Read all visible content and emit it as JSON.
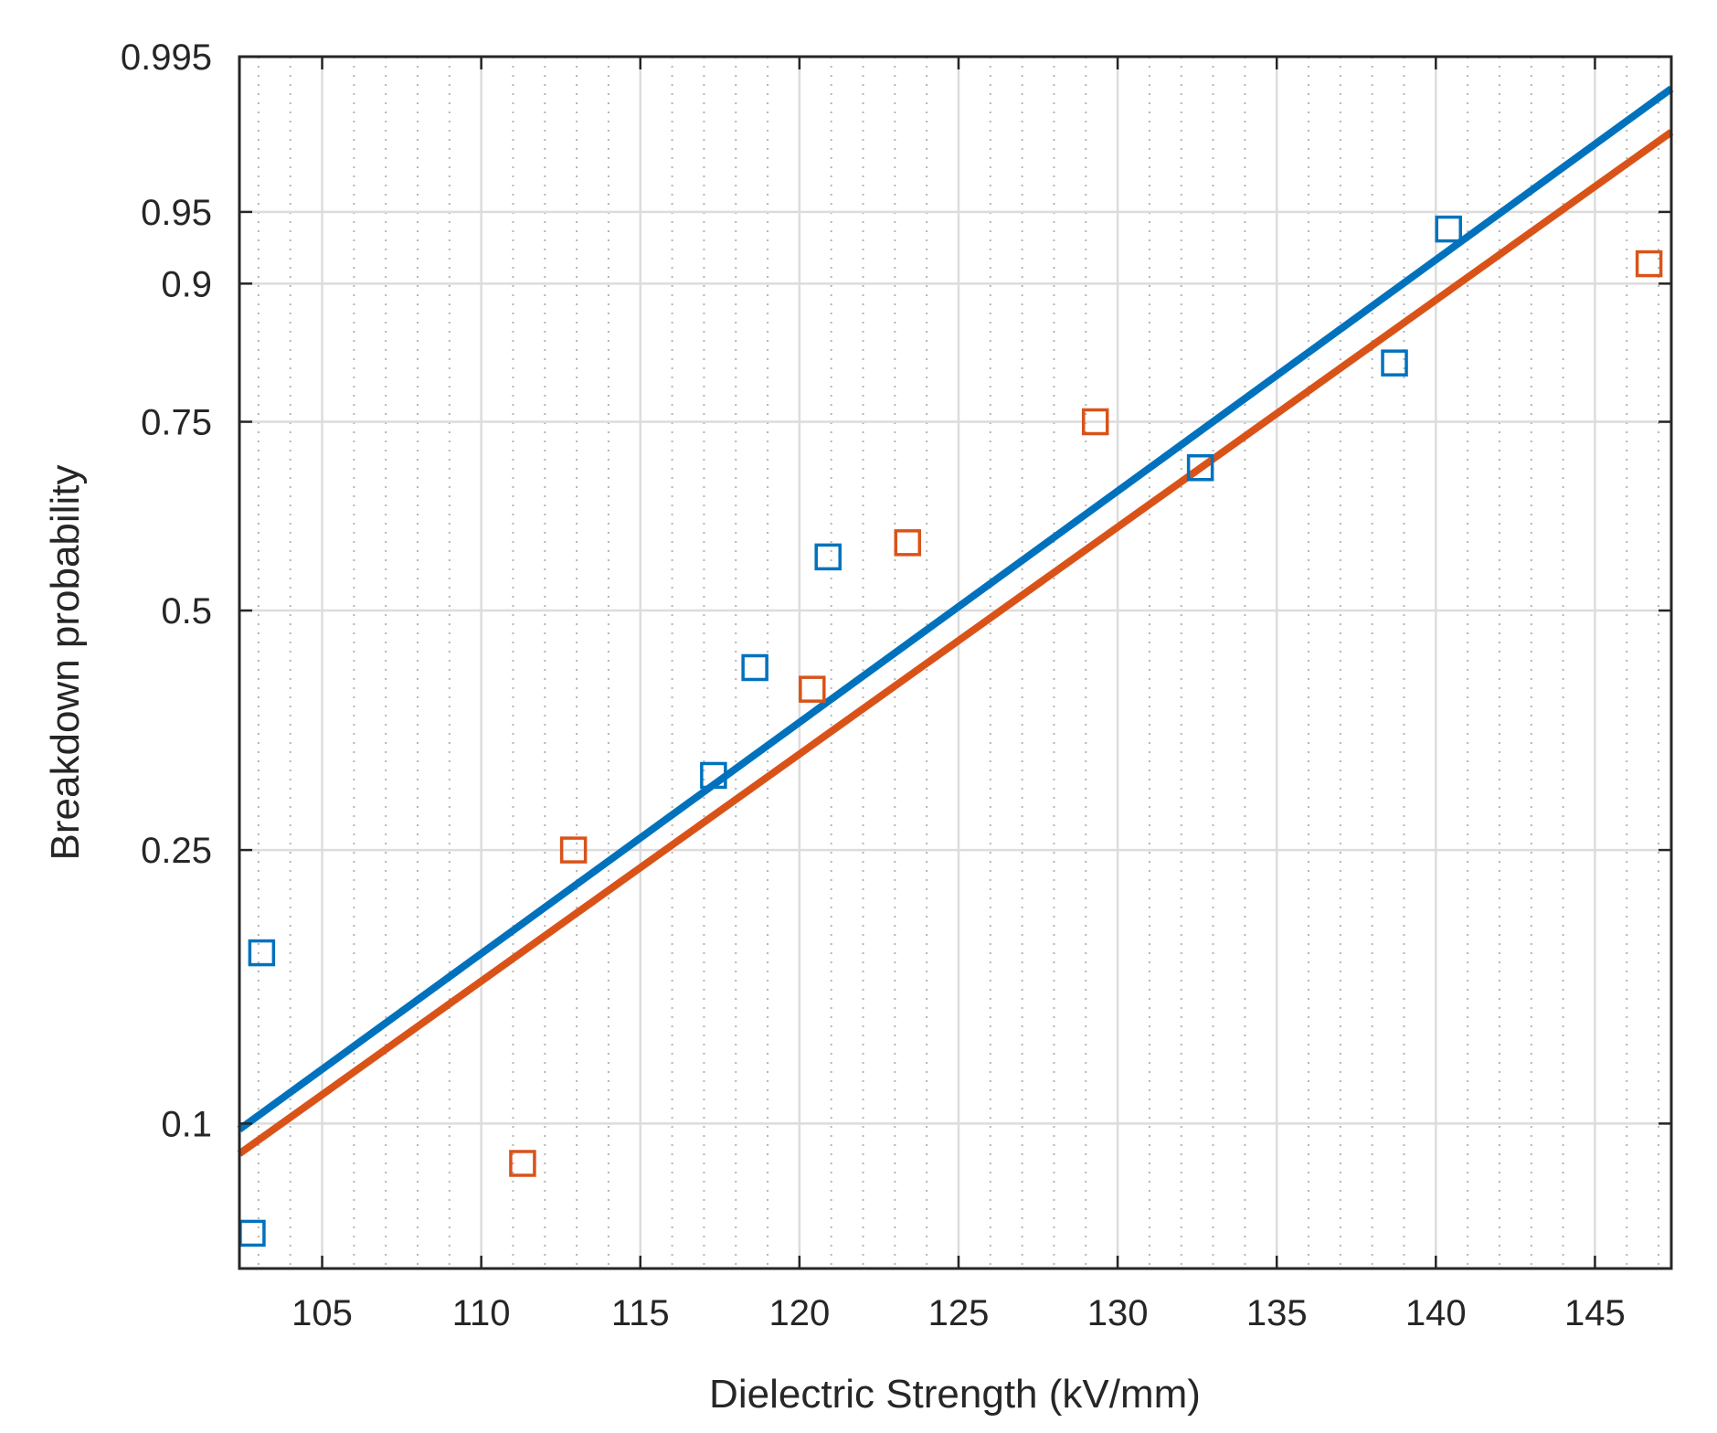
{
  "chart_data": {
    "type": "scatter",
    "title": "",
    "xlabel": "Dielectric Strength (kV/mm)",
    "ylabel": "Breakdown probability",
    "xlim": [
      102.4,
      147.4
    ],
    "ylim": [
      0.06,
      0.995
    ],
    "y_scale": "weibull probability",
    "grid": true,
    "x_ticks": [
      105,
      110,
      115,
      120,
      125,
      130,
      135,
      140,
      145
    ],
    "x_tick_labels": [
      "105",
      "110",
      "115",
      "120",
      "125",
      "130",
      "135",
      "140",
      "145"
    ],
    "y_ticks": [
      0.1,
      0.25,
      0.5,
      0.75,
      0.9,
      0.95,
      0.995
    ],
    "y_tick_labels": [
      "0.1",
      "0.25",
      "0.5",
      "0.75",
      "0.9",
      "0.95",
      "0.995"
    ],
    "series": [
      {
        "color": "#0072bd",
        "marker": "square",
        "x": [
          102.8,
          103.1,
          117.3,
          118.6,
          120.9,
          132.6,
          138.7,
          140.4
        ],
        "y": [
          0.068,
          0.179,
          0.315,
          0.43,
          0.57,
          0.69,
          0.821,
          0.94
        ],
        "fit": {
          "x": [
            102.4,
            147.4
          ],
          "y": [
            0.098,
            0.991
          ]
        }
      },
      {
        "color": "#d95319",
        "marker": "square",
        "x": [
          111.3,
          112.9,
          120.4,
          123.4,
          129.3,
          146.7
        ],
        "y": [
          0.087,
          0.25,
          0.405,
          0.589,
          0.75,
          0.916
        ],
        "fit": {
          "x": [
            102.4,
            147.4
          ],
          "y": [
            0.09,
            0.982
          ]
        }
      }
    ]
  }
}
